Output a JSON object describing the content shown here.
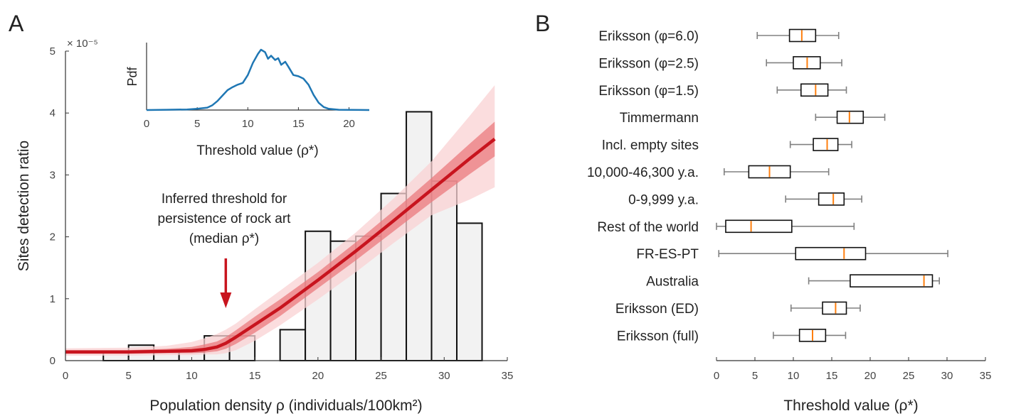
{
  "chart_data": [
    {
      "panel": "A",
      "type": "bar",
      "xlabel": "Population density ρ (individuals/100km²)",
      "ylabel": "Sites detection ratio",
      "y_multiplier": "× 10⁻⁵",
      "xlim": [
        0,
        35
      ],
      "ylim": [
        0,
        5
      ],
      "xticks": [
        "0",
        "5",
        "10",
        "15",
        "20",
        "25",
        "30",
        "35"
      ],
      "yticks": [
        "0",
        "1",
        "2",
        "3",
        "4",
        "5"
      ],
      "bin_width": 2,
      "bars": [
        {
          "x0": 1,
          "value": 0.0
        },
        {
          "x0": 3,
          "value": 0.14
        },
        {
          "x0": 5,
          "value": 0.25
        },
        {
          "x0": 7,
          "value": 0.14
        },
        {
          "x0": 9,
          "value": 0.14
        },
        {
          "x0": 11,
          "value": 0.4
        },
        {
          "x0": 13,
          "value": 0.4
        },
        {
          "x0": 15,
          "value": 0.0
        },
        {
          "x0": 17,
          "value": 0.5
        },
        {
          "x0": 19,
          "value": 2.09
        },
        {
          "x0": 21,
          "value": 1.93
        },
        {
          "x0": 23,
          "value": 2.01
        },
        {
          "x0": 25,
          "value": 2.7
        },
        {
          "x0": 27,
          "value": 4.02
        },
        {
          "x0": 29,
          "value": 2.9
        },
        {
          "x0": 31,
          "value": 2.22
        }
      ],
      "fit_curve": {
        "x": [
          0,
          5,
          8,
          10,
          11,
          12,
          12.7,
          13.5,
          15,
          17,
          20,
          23,
          26,
          29,
          32,
          34
        ],
        "median": [
          0.14,
          0.14,
          0.15,
          0.16,
          0.18,
          0.22,
          0.28,
          0.38,
          0.58,
          0.85,
          1.3,
          1.77,
          2.26,
          2.76,
          3.26,
          3.58
        ],
        "band_inner": {
          "lower": [
            0.11,
            0.11,
            0.12,
            0.12,
            0.13,
            0.15,
            0.19,
            0.27,
            0.45,
            0.72,
            1.17,
            1.62,
            2.09,
            2.56,
            3.01,
            3.3
          ],
          "upper": [
            0.17,
            0.17,
            0.19,
            0.22,
            0.26,
            0.31,
            0.38,
            0.49,
            0.71,
            0.99,
            1.43,
            1.91,
            2.42,
            2.95,
            3.5,
            3.86
          ]
        },
        "band_outer": {
          "lower": [
            0.08,
            0.08,
            0.09,
            0.09,
            0.1,
            0.1,
            0.12,
            0.17,
            0.32,
            0.57,
            0.99,
            1.43,
            1.9,
            2.35,
            2.6,
            2.8
          ],
          "upper": [
            0.2,
            0.21,
            0.24,
            0.3,
            0.36,
            0.43,
            0.5,
            0.6,
            0.83,
            1.13,
            1.58,
            2.07,
            2.62,
            3.22,
            3.95,
            4.45
          ]
        }
      },
      "annotation": {
        "lines": [
          "Inferred threshold for",
          "persistence of rock art",
          "(median ρ*)"
        ],
        "arrow_x": 12.7
      },
      "colors": {
        "bar_fill": "#f2f2f2",
        "fit_line": "#c8141e",
        "band_inner": "#eb7a7e",
        "band_outer": "#f9d2d3",
        "arrow": "#c8141e"
      }
    },
    {
      "panel": "A-inset",
      "type": "line",
      "xlabel": "Threshold value (ρ*)",
      "ylabel": "Pdf",
      "xlim": [
        0,
        22
      ],
      "xticks": [
        "0",
        "5",
        "10",
        "15",
        "20"
      ],
      "x": [
        0,
        2,
        4,
        5,
        6,
        6.5,
        7,
        7.5,
        8,
        8.5,
        9,
        9.5,
        10,
        10.5,
        11,
        11.3,
        11.7,
        12,
        12.3,
        12.7,
        13,
        13.3,
        13.7,
        14,
        14.5,
        15,
        15.5,
        16,
        16.5,
        17,
        17.5,
        18,
        19,
        22
      ],
      "y": [
        0,
        0.005,
        0.01,
        0.02,
        0.04,
        0.08,
        0.15,
        0.24,
        0.33,
        0.38,
        0.42,
        0.45,
        0.58,
        0.78,
        0.93,
        1.0,
        0.96,
        0.85,
        0.9,
        0.83,
        0.86,
        0.75,
        0.8,
        0.72,
        0.58,
        0.56,
        0.52,
        0.42,
        0.25,
        0.12,
        0.05,
        0.02,
        0.005,
        0
      ],
      "color": "#1f77b4"
    },
    {
      "panel": "B",
      "type": "boxplot",
      "xlabel": "Threshold value (ρ*)",
      "xlim": [
        0,
        35
      ],
      "xticks": [
        "0",
        "5",
        "10",
        "15",
        "20",
        "25",
        "30",
        "35"
      ],
      "boxes": [
        {
          "label": "Eriksson (φ=6.0)",
          "min": 5.3,
          "q1": 9.5,
          "median": 11.1,
          "q3": 12.9,
          "max": 15.9
        },
        {
          "label": "Eriksson (φ=2.5)",
          "min": 6.5,
          "q1": 10.0,
          "median": 11.8,
          "q3": 13.5,
          "max": 16.3
        },
        {
          "label": "Eriksson (φ=1.5)",
          "min": 7.9,
          "q1": 11.0,
          "median": 12.9,
          "q3": 14.5,
          "max": 16.9
        },
        {
          "label": "Timmermann",
          "min": 12.9,
          "q1": 15.7,
          "median": 17.3,
          "q3": 19.1,
          "max": 21.9
        },
        {
          "label": "Incl. empty sites",
          "min": 9.6,
          "q1": 12.6,
          "median": 14.4,
          "q3": 15.8,
          "max": 17.6
        },
        {
          "label": "10,000-46,300 y.a.",
          "min": 1.0,
          "q1": 4.2,
          "median": 6.9,
          "q3": 9.6,
          "max": 14.6
        },
        {
          "label": "0-9,999 y.a.",
          "min": 9.0,
          "q1": 13.3,
          "median": 15.2,
          "q3": 16.6,
          "max": 18.9
        },
        {
          "label": "Rest of the world",
          "min": 0.0,
          "q1": 1.2,
          "median": 4.5,
          "q3": 9.8,
          "max": 17.9
        },
        {
          "label": "FR-ES-PT",
          "min": 0.3,
          "q1": 10.3,
          "median": 16.6,
          "q3": 19.4,
          "max": 30.1
        },
        {
          "label": "Australia",
          "min": 12.0,
          "q1": 17.4,
          "median": 27.0,
          "q3": 28.1,
          "max": 29.0
        },
        {
          "label": "Eriksson (ED)",
          "min": 9.7,
          "q1": 13.8,
          "median": 15.5,
          "q3": 16.9,
          "max": 18.7
        },
        {
          "label": "Eriksson (full)",
          "min": 7.4,
          "q1": 10.8,
          "median": 12.5,
          "q3": 14.2,
          "max": 16.8
        }
      ],
      "colors": {
        "box": "#111111",
        "whisker": "#808080",
        "median": "#ff7f0e"
      }
    }
  ],
  "panel_labels": {
    "a": "A",
    "b": "B"
  }
}
